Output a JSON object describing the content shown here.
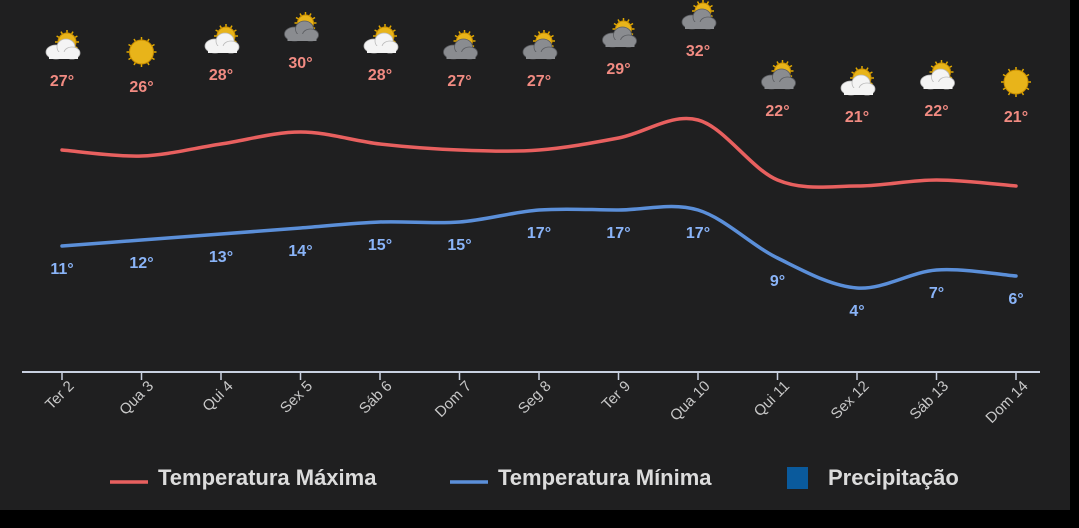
{
  "chart_data": {
    "type": "line",
    "categories": [
      "Ter 2",
      "Qua 3",
      "Qui 4",
      "Sex 5",
      "Sáb 6",
      "Dom 7",
      "Seg 8",
      "Ter 9",
      "Qua 10",
      "Qui 11",
      "Sex 12",
      "Sáb 13",
      "Dom 14"
    ],
    "icons": [
      "sun-cloud",
      "sun",
      "sun-cloud",
      "dark-cloud",
      "sun-cloud",
      "dark-cloud",
      "dark-cloud",
      "dark-cloud",
      "dark-cloud",
      "dark-cloud",
      "sun-cloud",
      "sun-cloud",
      "sun"
    ],
    "ylim": [
      -10,
      50
    ],
    "grid": false,
    "series": [
      {
        "name": "Temperatura Máxima",
        "color": "#e8605f",
        "type": "line",
        "position": "above",
        "values": [
          27,
          26,
          28,
          30,
          28,
          27,
          27,
          29,
          32,
          22,
          21,
          22,
          21
        ],
        "value_labels": [
          "27°",
          "26°",
          "28°",
          "30°",
          "28°",
          "27°",
          "27°",
          "29°",
          "32°",
          "22°",
          "21°",
          "22°",
          "21°"
        ]
      },
      {
        "name": "Temperatura Mínima",
        "color": "#5b8fd9",
        "type": "line",
        "position": "below",
        "values": [
          11,
          12,
          13,
          14,
          15,
          15,
          17,
          17,
          17,
          9,
          4,
          7,
          6
        ],
        "value_labels": [
          "11°",
          "12°",
          "13°",
          "14°",
          "15°",
          "15°",
          "17°",
          "17°",
          "17°",
          "9°",
          "4°",
          "7°",
          "6°"
        ]
      },
      {
        "name": "Precipitação",
        "color": "#0a5a9c",
        "type": "bar",
        "values": [
          null,
          null,
          null,
          null,
          null,
          null,
          null,
          null,
          null,
          null,
          null,
          null,
          null
        ]
      }
    ]
  }
}
